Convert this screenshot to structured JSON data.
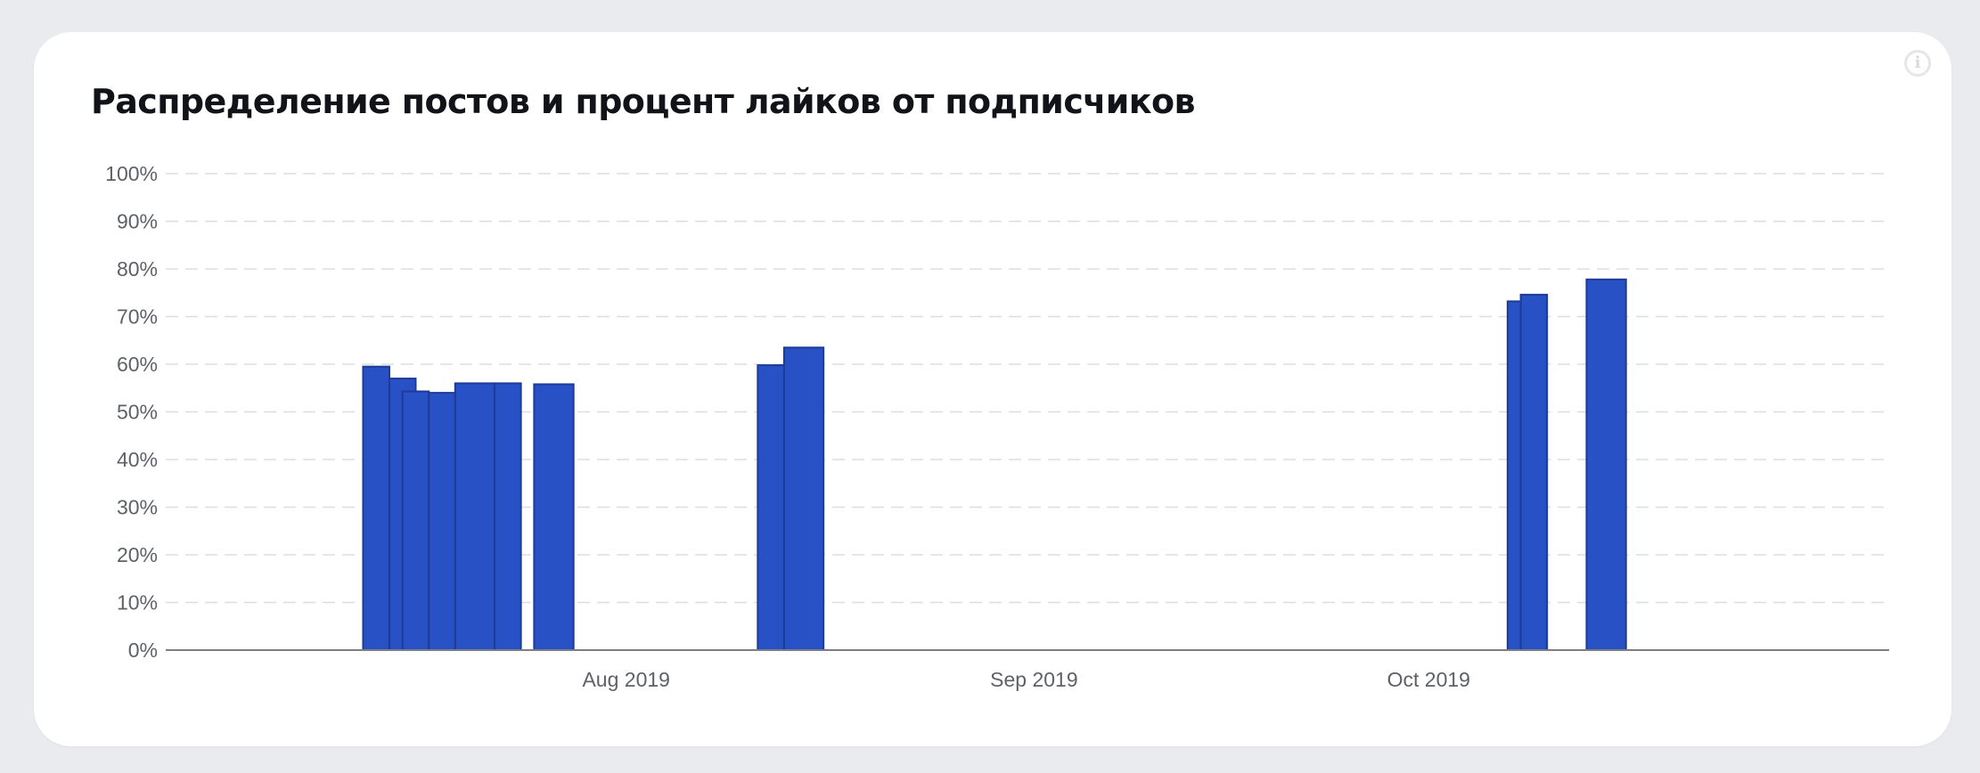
{
  "title": "Распределение постов и процент лайков от подписчиков",
  "info_icon": "info-icon",
  "colors": {
    "bar_fill": "#2751c5",
    "bar_stroke": "#1d3b97",
    "grid": "#dcdde1",
    "axis": "#7c7f86",
    "card": "#ffffff",
    "background": "#e9ebef"
  },
  "chart_data": {
    "type": "bar",
    "ylabel": "",
    "xlabel": "",
    "ylim": [
      0,
      100
    ],
    "y_ticks": [
      "0%",
      "10%",
      "20%",
      "30%",
      "40%",
      "50%",
      "60%",
      "70%",
      "80%",
      "90%",
      "100%"
    ],
    "x_range": [
      "2019-06-27",
      "2019-11-05"
    ],
    "x_ticks": [
      {
        "date": "2019-08-01",
        "label": "Aug 2019"
      },
      {
        "date": "2019-09-01",
        "label": "Sep 2019"
      },
      {
        "date": "2019-10-01",
        "label": "Oct 2019"
      }
    ],
    "grid": true,
    "bars": [
      {
        "start": "2019-07-12",
        "end": "2019-07-14",
        "value": 59.5
      },
      {
        "start": "2019-07-14",
        "end": "2019-07-16",
        "value": 57
      },
      {
        "start": "2019-07-15",
        "end": "2019-07-17",
        "value": 54.3
      },
      {
        "start": "2019-07-17",
        "end": "2019-07-19",
        "value": 54
      },
      {
        "start": "2019-07-19",
        "end": "2019-07-22",
        "value": 56
      },
      {
        "start": "2019-07-22",
        "end": "2019-07-24",
        "value": 56
      },
      {
        "start": "2019-07-25",
        "end": "2019-07-28",
        "value": 55.8
      },
      {
        "start": "2019-08-11",
        "end": "2019-08-13",
        "value": 59.8
      },
      {
        "start": "2019-08-13",
        "end": "2019-08-16",
        "value": 63.5
      },
      {
        "start": "2019-10-07",
        "end": "2019-10-08",
        "value": 73.2
      },
      {
        "start": "2019-10-08",
        "end": "2019-10-10",
        "value": 74.6
      },
      {
        "start": "2019-10-13",
        "end": "2019-10-16",
        "value": 77.8
      }
    ]
  }
}
